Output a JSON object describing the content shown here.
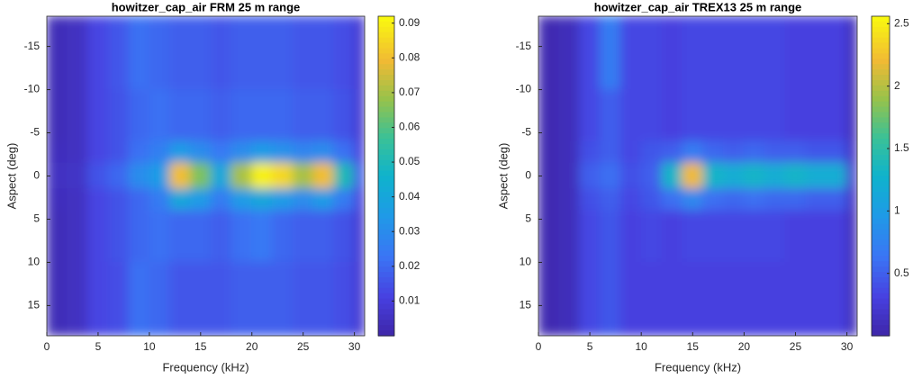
{
  "chart_data": [
    {
      "type": "heatmap",
      "title": "howitzer_cap_air FRM 25 m range",
      "x_label": "Frequency (kHz)",
      "y_label": "Aspect (deg)",
      "colormap": "parula",
      "y_reversed": true,
      "xlim": [
        0,
        31
      ],
      "xticks": [
        0,
        5,
        10,
        15,
        20,
        25,
        30
      ],
      "ylim": [
        -18.5,
        18.5
      ],
      "yticks": [
        -15,
        -10,
        -5,
        0,
        5,
        10,
        15
      ],
      "zlim": [
        0,
        0.092
      ],
      "zticks": [
        0.01,
        0.02,
        0.03,
        0.04,
        0.05,
        0.06,
        0.07,
        0.08,
        0.09
      ],
      "x_edges": [
        0,
        2,
        4,
        6,
        8,
        10,
        12,
        14,
        16,
        18,
        20,
        22,
        24,
        26,
        28,
        30,
        31
      ],
      "y_edges": [
        -18.5,
        -10,
        -4,
        -1.5,
        1.5,
        4,
        10,
        18.5
      ],
      "z": [
        [
          0.003,
          0.005,
          0.012,
          0.016,
          0.022,
          0.02,
          0.018,
          0.018,
          0.016,
          0.018,
          0.018,
          0.018,
          0.016,
          0.016,
          0.014,
          0.008
        ],
        [
          0.003,
          0.005,
          0.012,
          0.015,
          0.02,
          0.022,
          0.02,
          0.02,
          0.018,
          0.02,
          0.02,
          0.02,
          0.018,
          0.018,
          0.015,
          0.008
        ],
        [
          0.004,
          0.005,
          0.012,
          0.015,
          0.022,
          0.026,
          0.035,
          0.03,
          0.024,
          0.03,
          0.035,
          0.032,
          0.028,
          0.03,
          0.022,
          0.01
        ],
        [
          0.005,
          0.006,
          0.015,
          0.02,
          0.03,
          0.035,
          0.08,
          0.065,
          0.04,
          0.07,
          0.09,
          0.085,
          0.07,
          0.08,
          0.05,
          0.015
        ],
        [
          0.004,
          0.005,
          0.012,
          0.015,
          0.02,
          0.025,
          0.04,
          0.035,
          0.025,
          0.035,
          0.04,
          0.035,
          0.03,
          0.035,
          0.025,
          0.01
        ],
        [
          0.003,
          0.005,
          0.012,
          0.015,
          0.02,
          0.022,
          0.02,
          0.02,
          0.018,
          0.022,
          0.024,
          0.02,
          0.018,
          0.018,
          0.015,
          0.008
        ],
        [
          0.003,
          0.005,
          0.012,
          0.014,
          0.022,
          0.02,
          0.016,
          0.016,
          0.016,
          0.018,
          0.018,
          0.018,
          0.016,
          0.016,
          0.014,
          0.008
        ]
      ]
    },
    {
      "type": "heatmap",
      "title": "howitzer_cap_air TREX13 25 m range",
      "x_label": "Frequency (kHz)",
      "y_label": "Aspect (deg)",
      "colormap": "parula",
      "y_reversed": true,
      "xlim": [
        0,
        31
      ],
      "xticks": [
        0,
        5,
        10,
        15,
        20,
        25,
        30
      ],
      "ylim": [
        -18.5,
        18.5
      ],
      "yticks": [
        -15,
        -10,
        -5,
        0,
        5,
        10,
        15
      ],
      "zlim": [
        0,
        2.56
      ],
      "zticks": [
        0.5,
        1,
        1.5,
        2,
        2.5
      ],
      "x_edges": [
        0,
        2,
        4,
        6,
        8,
        10,
        12,
        14,
        16,
        18,
        20,
        22,
        24,
        26,
        28,
        30,
        31
      ],
      "y_edges": [
        -18.5,
        -10,
        -4,
        -1.5,
        1.5,
        4,
        10,
        18.5
      ],
      "z": [
        [
          0.05,
          0.1,
          0.35,
          0.7,
          0.35,
          0.35,
          0.3,
          0.35,
          0.35,
          0.35,
          0.35,
          0.35,
          0.3,
          0.3,
          0.3,
          0.1
        ],
        [
          0.05,
          0.1,
          0.35,
          0.5,
          0.35,
          0.35,
          0.3,
          0.35,
          0.35,
          0.35,
          0.35,
          0.35,
          0.3,
          0.3,
          0.3,
          0.1
        ],
        [
          0.05,
          0.1,
          0.4,
          0.5,
          0.35,
          0.45,
          0.5,
          0.7,
          0.55,
          0.5,
          0.55,
          0.5,
          0.5,
          0.45,
          0.45,
          0.15
        ],
        [
          0.05,
          0.1,
          0.5,
          0.6,
          0.4,
          0.5,
          1.3,
          2.2,
          1.3,
          1.2,
          1.3,
          1.2,
          1.3,
          1.2,
          1.2,
          0.2
        ],
        [
          0.05,
          0.1,
          0.4,
          0.5,
          0.35,
          0.45,
          0.6,
          0.8,
          0.6,
          0.55,
          0.6,
          0.55,
          0.55,
          0.5,
          0.5,
          0.15
        ],
        [
          0.05,
          0.1,
          0.35,
          0.45,
          0.3,
          0.35,
          0.3,
          0.35,
          0.35,
          0.35,
          0.35,
          0.35,
          0.3,
          0.3,
          0.3,
          0.1
        ],
        [
          0.05,
          0.1,
          0.35,
          0.45,
          0.3,
          0.3,
          0.3,
          0.3,
          0.3,
          0.3,
          0.3,
          0.3,
          0.3,
          0.3,
          0.3,
          0.1
        ]
      ]
    }
  ]
}
